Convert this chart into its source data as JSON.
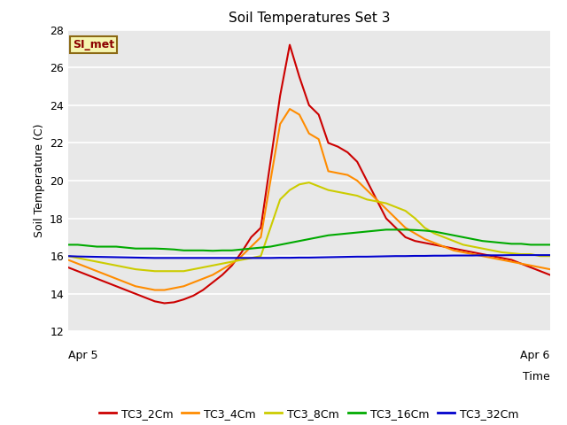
{
  "title": "Soil Temperatures Set 3",
  "xlabel": "Time",
  "ylabel": "Soil Temperature (C)",
  "ylim": [
    12,
    28
  ],
  "xlim": [
    0,
    1
  ],
  "x_tick_labels": [
    "Apr 5",
    "Apr 6"
  ],
  "background_color": "#e8e8e8",
  "plot_bg_color": "#e8e8e8",
  "outer_bg_color": "#ffffff",
  "annotation_text": "SI_met",
  "annotation_color": "#8b0000",
  "annotation_bg": "#f5f5b0",
  "annotation_border": "#8b6914",
  "grid_color": "#ffffff",
  "series": {
    "TC3_2Cm": {
      "color": "#cc0000",
      "x": [
        0.0,
        0.02,
        0.04,
        0.06,
        0.08,
        0.1,
        0.12,
        0.14,
        0.16,
        0.18,
        0.2,
        0.22,
        0.24,
        0.26,
        0.28,
        0.3,
        0.32,
        0.34,
        0.36,
        0.38,
        0.4,
        0.42,
        0.44,
        0.46,
        0.48,
        0.5,
        0.52,
        0.54,
        0.56,
        0.58,
        0.6,
        0.62,
        0.64,
        0.66,
        0.68,
        0.7,
        0.72,
        0.74,
        0.76,
        0.78,
        0.8,
        0.82,
        0.84,
        0.86,
        0.88,
        0.9,
        0.92,
        0.94,
        0.96,
        0.98,
        1.0
      ],
      "y": [
        15.4,
        15.2,
        15.0,
        14.8,
        14.6,
        14.4,
        14.2,
        14.0,
        13.8,
        13.6,
        13.5,
        13.55,
        13.7,
        13.9,
        14.2,
        14.6,
        15.0,
        15.5,
        16.2,
        17.0,
        17.5,
        21.0,
        24.5,
        27.2,
        25.5,
        24.0,
        23.5,
        22.0,
        21.8,
        21.5,
        21.0,
        20.0,
        19.0,
        18.0,
        17.5,
        17.0,
        16.8,
        16.7,
        16.6,
        16.5,
        16.4,
        16.3,
        16.2,
        16.1,
        16.0,
        15.9,
        15.8,
        15.6,
        15.4,
        15.2,
        15.0
      ]
    },
    "TC3_4Cm": {
      "color": "#ff8c00",
      "x": [
        0.0,
        0.02,
        0.04,
        0.06,
        0.08,
        0.1,
        0.12,
        0.14,
        0.16,
        0.18,
        0.2,
        0.22,
        0.24,
        0.26,
        0.28,
        0.3,
        0.32,
        0.34,
        0.36,
        0.38,
        0.4,
        0.42,
        0.44,
        0.46,
        0.48,
        0.5,
        0.52,
        0.54,
        0.56,
        0.58,
        0.6,
        0.62,
        0.64,
        0.66,
        0.68,
        0.7,
        0.72,
        0.74,
        0.76,
        0.78,
        0.8,
        0.82,
        0.84,
        0.86,
        0.88,
        0.9,
        0.92,
        0.94,
        0.96,
        0.98,
        1.0
      ],
      "y": [
        15.8,
        15.6,
        15.4,
        15.2,
        15.0,
        14.8,
        14.6,
        14.4,
        14.3,
        14.2,
        14.2,
        14.3,
        14.4,
        14.6,
        14.8,
        15.0,
        15.3,
        15.6,
        16.0,
        16.5,
        17.0,
        20.0,
        23.0,
        23.8,
        23.5,
        22.5,
        22.2,
        20.5,
        20.4,
        20.3,
        20.0,
        19.5,
        19.0,
        18.5,
        18.0,
        17.5,
        17.2,
        16.9,
        16.7,
        16.5,
        16.3,
        16.2,
        16.1,
        16.0,
        15.9,
        15.8,
        15.7,
        15.6,
        15.5,
        15.4,
        15.3
      ]
    },
    "TC3_8Cm": {
      "color": "#cccc00",
      "x": [
        0.0,
        0.02,
        0.04,
        0.06,
        0.08,
        0.1,
        0.12,
        0.14,
        0.16,
        0.18,
        0.2,
        0.22,
        0.24,
        0.26,
        0.28,
        0.3,
        0.32,
        0.34,
        0.36,
        0.38,
        0.4,
        0.42,
        0.44,
        0.46,
        0.48,
        0.5,
        0.52,
        0.54,
        0.56,
        0.58,
        0.6,
        0.62,
        0.64,
        0.66,
        0.68,
        0.7,
        0.72,
        0.74,
        0.76,
        0.78,
        0.8,
        0.82,
        0.84,
        0.86,
        0.88,
        0.9,
        0.92,
        0.94,
        0.96,
        0.98,
        1.0
      ],
      "y": [
        16.0,
        15.9,
        15.8,
        15.7,
        15.6,
        15.5,
        15.4,
        15.3,
        15.25,
        15.2,
        15.2,
        15.2,
        15.2,
        15.3,
        15.4,
        15.5,
        15.6,
        15.7,
        15.8,
        15.9,
        16.0,
        17.5,
        19.0,
        19.5,
        19.8,
        19.9,
        19.7,
        19.5,
        19.4,
        19.3,
        19.2,
        19.0,
        18.9,
        18.8,
        18.6,
        18.4,
        18.0,
        17.5,
        17.2,
        17.0,
        16.8,
        16.6,
        16.5,
        16.4,
        16.3,
        16.2,
        16.15,
        16.1,
        16.1,
        16.0,
        16.0
      ]
    },
    "TC3_16Cm": {
      "color": "#00aa00",
      "x": [
        0.0,
        0.02,
        0.04,
        0.06,
        0.08,
        0.1,
        0.12,
        0.14,
        0.16,
        0.18,
        0.2,
        0.22,
        0.24,
        0.26,
        0.28,
        0.3,
        0.32,
        0.34,
        0.36,
        0.38,
        0.4,
        0.42,
        0.44,
        0.46,
        0.48,
        0.5,
        0.52,
        0.54,
        0.56,
        0.58,
        0.6,
        0.62,
        0.64,
        0.66,
        0.68,
        0.7,
        0.72,
        0.74,
        0.76,
        0.78,
        0.8,
        0.82,
        0.84,
        0.86,
        0.88,
        0.9,
        0.92,
        0.94,
        0.96,
        0.98,
        1.0
      ],
      "y": [
        16.6,
        16.6,
        16.55,
        16.5,
        16.5,
        16.5,
        16.45,
        16.4,
        16.4,
        16.4,
        16.38,
        16.35,
        16.3,
        16.3,
        16.3,
        16.28,
        16.3,
        16.3,
        16.35,
        16.4,
        16.45,
        16.5,
        16.6,
        16.7,
        16.8,
        16.9,
        17.0,
        17.1,
        17.15,
        17.2,
        17.25,
        17.3,
        17.35,
        17.4,
        17.4,
        17.4,
        17.38,
        17.35,
        17.3,
        17.2,
        17.1,
        17.0,
        16.9,
        16.8,
        16.75,
        16.7,
        16.65,
        16.65,
        16.6,
        16.6,
        16.6
      ]
    },
    "TC3_32Cm": {
      "color": "#0000cc",
      "x": [
        0.0,
        0.02,
        0.04,
        0.06,
        0.08,
        0.1,
        0.12,
        0.14,
        0.16,
        0.18,
        0.2,
        0.22,
        0.24,
        0.26,
        0.28,
        0.3,
        0.32,
        0.34,
        0.36,
        0.38,
        0.4,
        0.42,
        0.44,
        0.46,
        0.48,
        0.5,
        0.52,
        0.54,
        0.56,
        0.58,
        0.6,
        0.62,
        0.64,
        0.66,
        0.68,
        0.7,
        0.72,
        0.74,
        0.76,
        0.78,
        0.8,
        0.82,
        0.84,
        0.86,
        0.88,
        0.9,
        0.92,
        0.94,
        0.96,
        0.98,
        1.0
      ],
      "y": [
        16.0,
        15.98,
        15.97,
        15.96,
        15.95,
        15.94,
        15.93,
        15.92,
        15.91,
        15.9,
        15.9,
        15.9,
        15.9,
        15.9,
        15.9,
        15.9,
        15.9,
        15.9,
        15.9,
        15.9,
        15.9,
        15.9,
        15.91,
        15.91,
        15.92,
        15.92,
        15.93,
        15.94,
        15.95,
        15.96,
        15.97,
        15.97,
        15.98,
        15.99,
        16.0,
        16.0,
        16.01,
        16.01,
        16.02,
        16.02,
        16.03,
        16.03,
        16.03,
        16.04,
        16.04,
        16.04,
        16.05,
        16.05,
        16.05,
        16.05,
        16.05
      ]
    }
  },
  "legend_order": [
    "TC3_2Cm",
    "TC3_4Cm",
    "TC3_8Cm",
    "TC3_16Cm",
    "TC3_32Cm"
  ]
}
